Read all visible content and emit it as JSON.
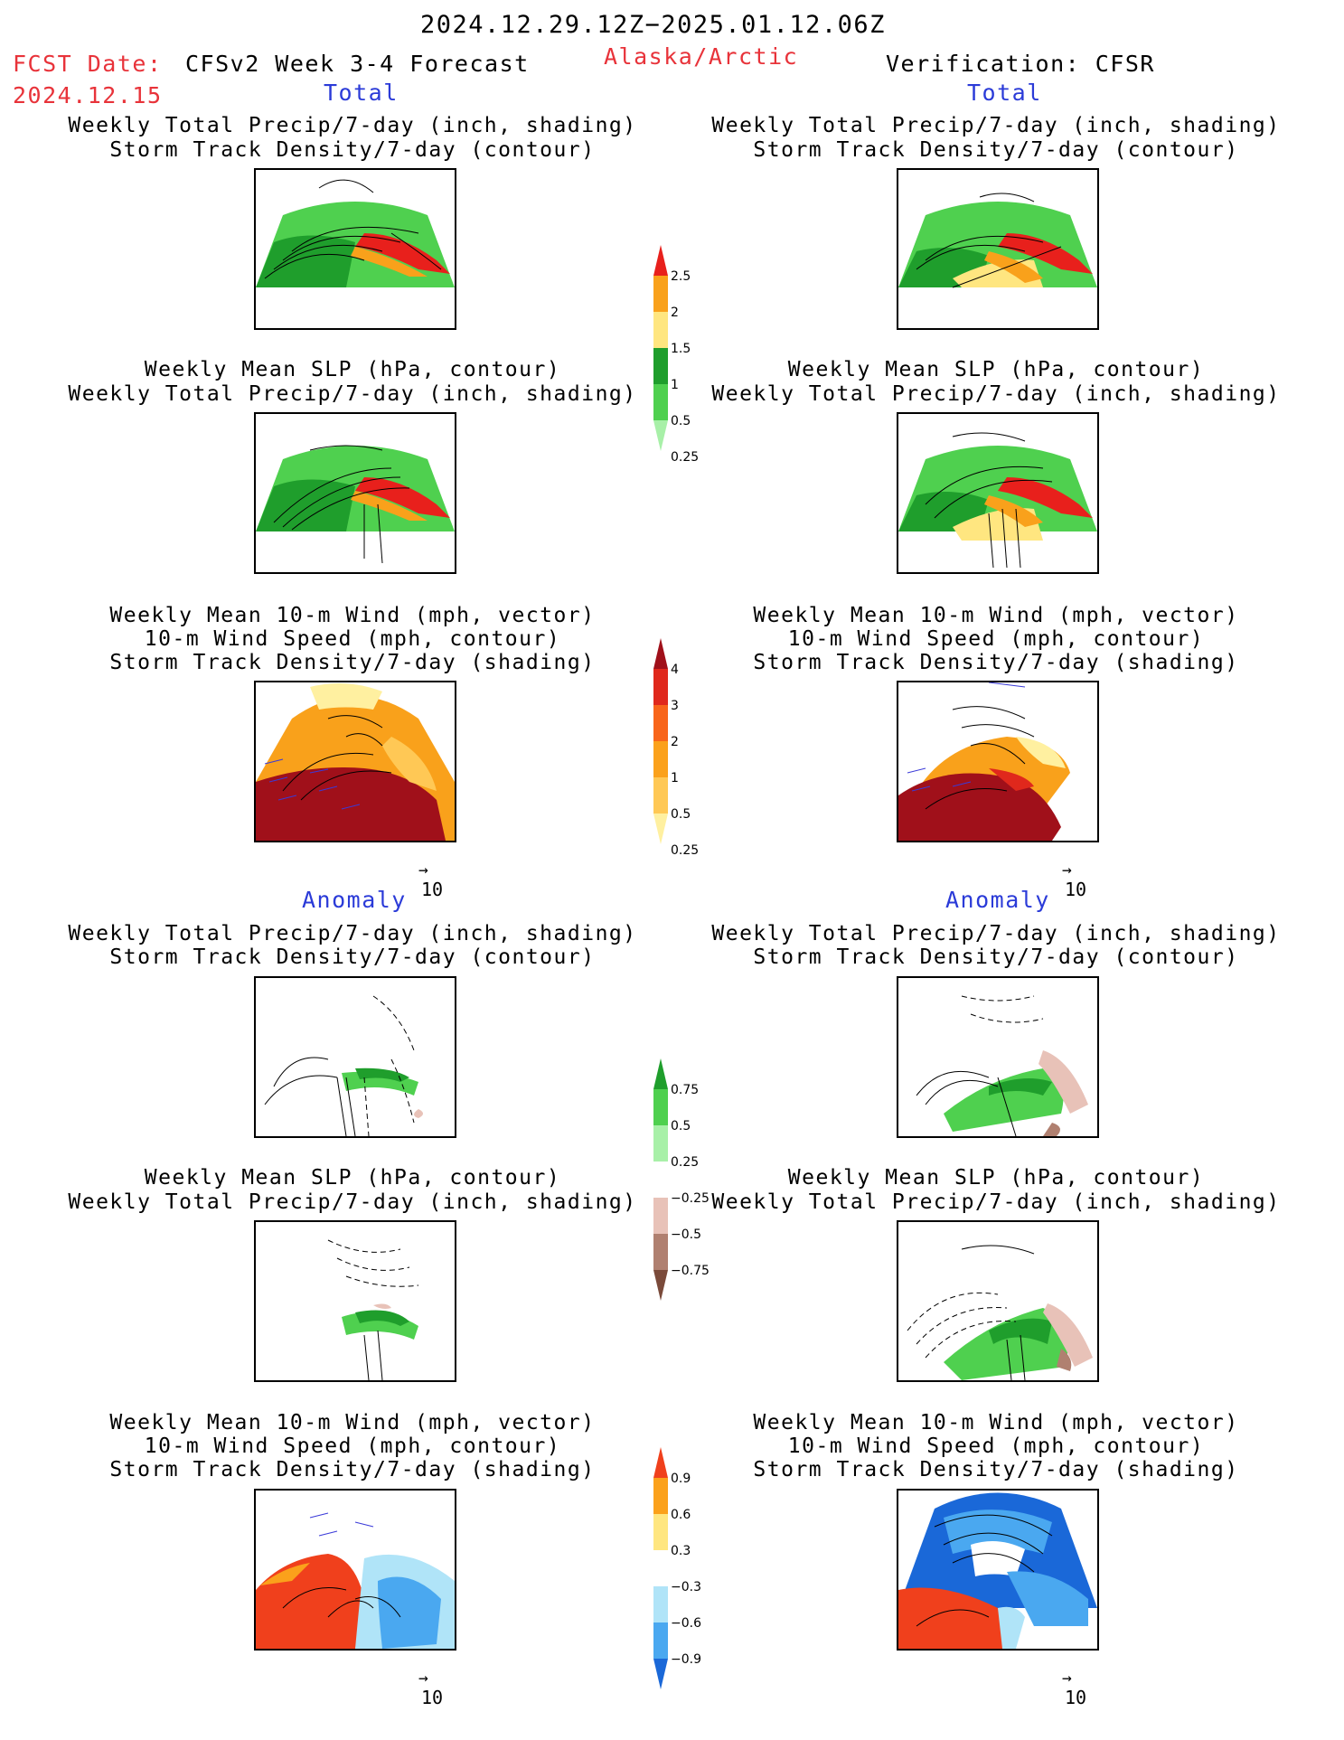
{
  "header": {
    "period": "2024.12.29.12Z−2025.01.12.06Z",
    "fcst_date_label": "FCST Date:",
    "fcst_date_value": "2024.12.15",
    "model": "CFSv2 Week 3-4 Forecast",
    "region": "Alaska/Arctic",
    "verification": "Verification: CFSR"
  },
  "sections": {
    "total_label": "Total",
    "anomaly_label": "Anomaly"
  },
  "titles": {
    "precip_shading": "Weekly Total Precip/7-day (inch, shading)",
    "stdens_contour": "Storm Track Density/7-day (contour)",
    "slp_contour": "Weekly Mean SLP (hPa, contour)",
    "wind_vector": "Weekly Mean 10-m Wind (mph, vector)",
    "windspeed_contour": "10-m Wind Speed (mph, contour)",
    "stdens_shading": "Storm Track Density/7-day (shading)"
  },
  "vector_ref": "10",
  "colorbars": {
    "total_precip": {
      "labels": [
        "2.5",
        "2",
        "1.5",
        "1",
        "0.5",
        "0.25"
      ],
      "colors": [
        "#e8201c",
        "#f9a11b",
        "#ffe680",
        "#1f9e2c",
        "#4fd04f",
        "#a8f0a8"
      ]
    },
    "total_storm": {
      "labels": [
        "4",
        "3",
        "2",
        "1",
        "0.5",
        "0.25"
      ],
      "colors": [
        "#a0101a",
        "#e0281c",
        "#f8651a",
        "#fba11b",
        "#ffc855",
        "#fff0a0"
      ]
    },
    "anom_precip": {
      "labels": [
        "0.75",
        "0.5",
        "0.25",
        "−0.25",
        "−0.5",
        "−0.75"
      ],
      "colors": [
        "#1f9e2c",
        "#4fd04f",
        "#a8f0a8",
        "#ffffff",
        "#e8c2b8",
        "#b08070",
        "#7a4a3a"
      ]
    },
    "anom_storm": {
      "labels": [
        "0.9",
        "0.6",
        "0.3",
        "−0.3",
        "−0.6",
        "−0.9"
      ],
      "colors": [
        "#f0401c",
        "#fba11b",
        "#ffe680",
        "#ffffff",
        "#b0e4f8",
        "#4aa8f0",
        "#1a68d8"
      ]
    }
  }
}
